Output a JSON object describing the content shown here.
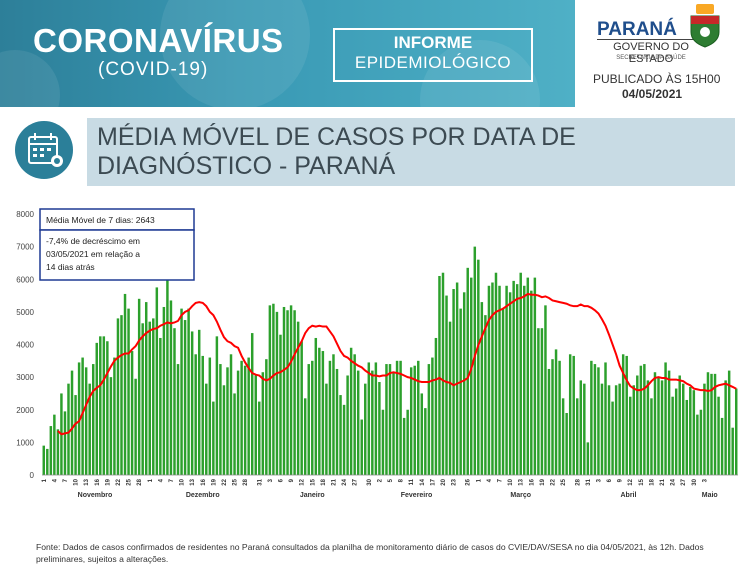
{
  "header": {
    "title_main": "CORONAVÍRUS",
    "title_sub": "(COVID-19)",
    "informe_line1": "INFORME",
    "informe_line2": "EPIDEMIOLÓGICO",
    "state": "PARANÁ",
    "government": "GOVERNO DO ESTADO",
    "secretariat": "SECRETARIA DA SAÚDE",
    "published": "PUBLICADO ÀS 15H00",
    "date": "04/05/2021"
  },
  "section": {
    "icon": "calendar-virus-icon",
    "heading": "MÉDIA MÓVEL DE CASOS POR DATA DE DIAGNÓSTICO - PARANÁ"
  },
  "colors": {
    "bar": "#2ca02c",
    "line": "#ff0000",
    "banner": "#3a9ab5",
    "heading_bg": "#c8dbe4",
    "annotation_border": "#1f3a93"
  },
  "footnote": "Fonte: Dados de casos confirmados de residentes no Paraná consultados da planilha de monitoramento diário de casos do CVIE/DAV/SESA no dia 04/05/2021, às 12h. Dados preliminares, sujeitos a alterações.",
  "chart_data": {
    "type": "bar",
    "grid": false,
    "legend": "none",
    "ylim": [
      0,
      8000
    ],
    "yticks": [
      0,
      1000,
      2000,
      3000,
      4000,
      5000,
      6000,
      7000,
      8000
    ],
    "start_date": "2020-11-01",
    "end_date": "2021-05-03",
    "x_tick_labels": [
      "1",
      "4",
      "7",
      "10",
      "13",
      "16",
      "19",
      "22",
      "25",
      "28",
      "1",
      "4",
      "7",
      "10",
      "13",
      "16",
      "19",
      "22",
      "25",
      "28",
      "31",
      "3",
      "6",
      "9",
      "12",
      "15",
      "18",
      "21",
      "24",
      "27",
      "30",
      "2",
      "5",
      "8",
      "11",
      "14",
      "17",
      "20",
      "23",
      "26",
      "1",
      "4",
      "7",
      "10",
      "13",
      "16",
      "19",
      "22",
      "25",
      "28",
      "31",
      "3",
      "6",
      "9",
      "12",
      "15",
      "18",
      "21",
      "24",
      "27",
      "30",
      "3"
    ],
    "month_labels": [
      "Novembro",
      "Dezembro",
      "Janeiro",
      "Fevereiro",
      "Março",
      "Abril",
      "Maio"
    ],
    "annotations": [
      "Média Móvel de 7 dias: 2643",
      "-7,4% de decréscimo em 03/05/2021  em relação a 14 dias atrás"
    ],
    "series": [
      {
        "type": "bar",
        "values": [
          900,
          800,
          1500,
          1850,
          1400,
          2500,
          1950,
          2800,
          3200,
          2450,
          3450,
          3600,
          3300,
          2800,
          3400,
          4050,
          4250,
          4250,
          4100,
          3000,
          3600,
          4800,
          4900,
          5550,
          5100,
          3800,
          2950,
          5400,
          4650,
          5300,
          4700,
          4800,
          5750,
          4200,
          5150,
          6050,
          5350,
          4500,
          3400,
          5100,
          4750,
          5100,
          4400,
          3700,
          4450,
          3650,
          2800,
          3600,
          2250,
          4250,
          3400,
          2750,
          3300,
          3700,
          2500,
          3200,
          3500,
          3350,
          3600,
          4350,
          3050,
          2250,
          3150,
          3550,
          5200,
          5250,
          5000,
          4300,
          5150,
          5050,
          5200,
          5050,
          4700,
          4100,
          2350,
          3400,
          3500,
          4200,
          3900,
          3800,
          2800,
          3500,
          3700,
          3250,
          2450,
          2150,
          3050,
          3900,
          3700,
          3200,
          1700,
          2800,
          3450,
          3200,
          3450,
          2850,
          2000,
          3400,
          3400,
          3150,
          3500,
          3500,
          1750,
          2000,
          3300,
          3350,
          3500,
          2500,
          2050,
          3400,
          3600,
          4200,
          6100,
          6200,
          5500,
          4700,
          5700,
          5900,
          5100,
          5600,
          6350,
          6050,
          7000,
          6600,
          5300,
          4900,
          5800,
          5900,
          6200,
          5800,
          5100,
          5800,
          5600,
          5950,
          5850,
          6200,
          5800,
          6050,
          5650,
          6050,
          4500,
          4500,
          5200,
          3250,
          3550,
          3850,
          3500,
          2350,
          1900,
          3700,
          3650,
          2350,
          2900,
          2800,
          1000,
          3500,
          3400,
          3300,
          2800,
          3450,
          2750,
          2250,
          2750,
          2800,
          3700,
          3650,
          2400,
          2750,
          3050,
          3350,
          3400,
          2900,
          2350,
          3150,
          3000,
          2900,
          3450,
          3200,
          2400,
          2650,
          3050,
          2800,
          2300,
          2700,
          2600,
          1850,
          2000,
          2800,
          3150,
          3100,
          3100,
          2400,
          1750,
          2900,
          3200,
          1450,
          2650
        ]
      },
      {
        "type": "line",
        "values": [
          1350,
          1250,
          1275,
          1300,
          1425,
          1575,
          1650,
          1900,
          2150,
          2400,
          2575,
          2675,
          2750,
          2925,
          3125,
          3325,
          3500,
          3600,
          3675,
          3725,
          3725,
          3850,
          3950,
          4125,
          4250,
          4350,
          4425,
          4475,
          4500,
          4575,
          4625,
          4675,
          4650,
          4675,
          4725,
          4900,
          5000,
          5050,
          5175,
          5275,
          5300,
          5275,
          5175,
          5000,
          4900,
          4700,
          4450,
          4225,
          4100,
          4050,
          3950,
          3900,
          3650,
          3450,
          3275,
          3125,
          3075,
          3050,
          2950,
          2900,
          2950,
          3050,
          3125,
          3150,
          3225,
          3300,
          3475,
          3700,
          3900,
          4100,
          4350,
          4500,
          4575,
          4550,
          4575,
          4550,
          4550,
          4400,
          4250,
          4025,
          3800,
          3650,
          3600,
          3500,
          3425,
          3350,
          3300,
          3200,
          3125,
          3050,
          3050,
          3025,
          3050,
          3050,
          3125,
          3150,
          3125,
          3100,
          3050,
          3000,
          2975,
          2925,
          2875,
          2850,
          2850,
          2850,
          2900,
          2925,
          2975,
          2900,
          2850,
          2825,
          2750,
          2800,
          2850,
          2900,
          2975,
          3250,
          3650,
          3975,
          4250,
          4500,
          4750,
          4900,
          5000,
          5050,
          5100,
          5175,
          5250,
          5325,
          5400,
          5425,
          5475,
          5550,
          5525,
          5525,
          5500,
          5450,
          5475,
          5425,
          5350,
          5325,
          5300,
          5275,
          5250,
          5200,
          5175,
          5175,
          5225,
          5175,
          5175,
          5125,
          5050,
          4950,
          4775,
          4575,
          4300,
          4000,
          3700,
          3350,
          3125,
          2900,
          2725,
          2650,
          2600,
          2600,
          2650,
          2750,
          2875,
          2975,
          3000,
          2975,
          2975,
          2925,
          2925,
          2925,
          2900,
          2875,
          2800,
          2750,
          2650,
          2625,
          2600,
          2600,
          2575,
          2600,
          2700,
          2750,
          2775,
          2800,
          2750,
          2700,
          2643
        ]
      }
    ]
  }
}
